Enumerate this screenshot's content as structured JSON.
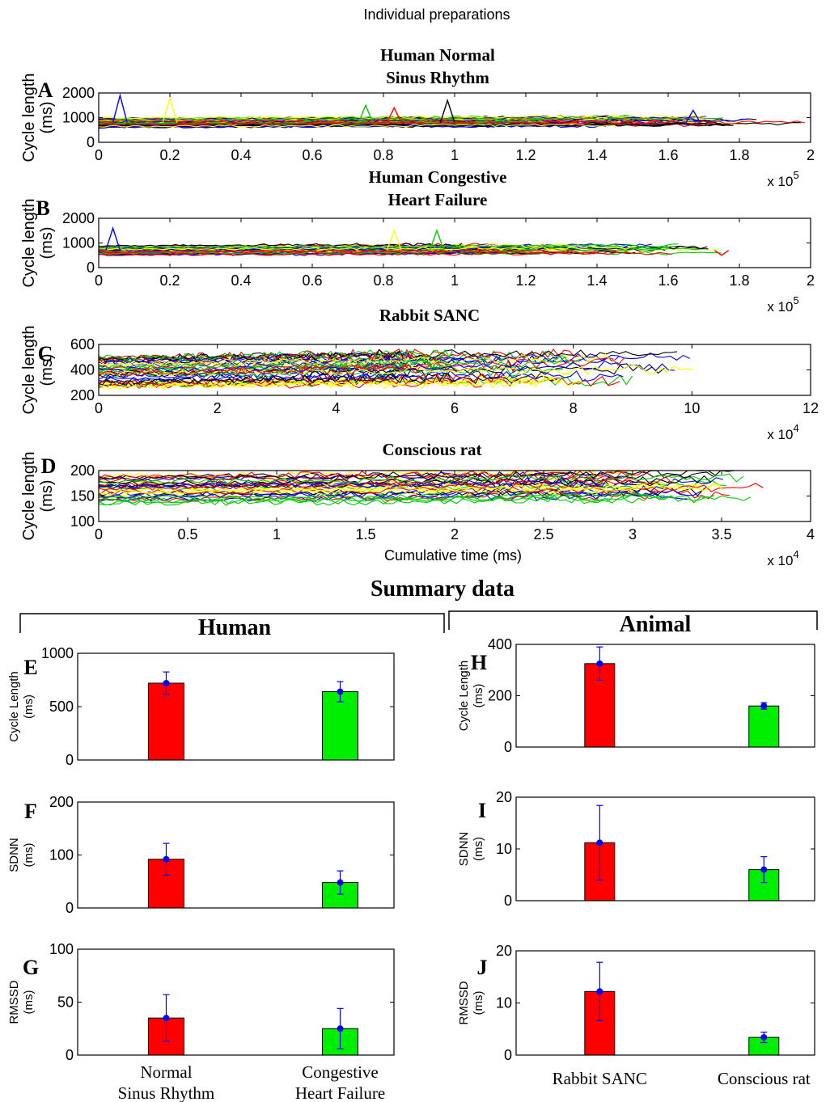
{
  "figure": {
    "top_title": "Individual preparations",
    "summary_title": "Summary data",
    "group_human": "Human",
    "group_animal": "Animal"
  },
  "colors": {
    "trace_palette": [
      "#000000",
      "#0000ff",
      "#ffff00",
      "#00cc00",
      "#ff0000"
    ],
    "bar_red": "#ff0000",
    "bar_green": "#00ee00",
    "error_bar": "#0000ff"
  },
  "chart_data": [
    {
      "id": "A",
      "type": "line",
      "title": [
        "Human Normal",
        "Sinus Rhythm"
      ],
      "ylabel": [
        "Cycle length",
        "(ms)"
      ],
      "xlabel": "",
      "x_multiplier": "x 10",
      "x_exponent": "5",
      "xlim": [
        0,
        2
      ],
      "ylim": [
        0,
        2000
      ],
      "xticks": [
        "0",
        "0.2",
        "0.4",
        "0.6",
        "0.8",
        "1",
        "1.2",
        "1.4",
        "1.6",
        "1.8",
        "2"
      ],
      "yticks": [
        "0",
        "1000",
        "2000"
      ],
      "grid": false,
      "approx_series": {
        "count": 40,
        "band_low": 600,
        "band_high": 1000,
        "x_end_range": [
          1.2,
          2.0
        ],
        "spikes": [
          [
            0.06,
            1900
          ],
          [
            0.2,
            1800
          ],
          [
            0.75,
            1500
          ],
          [
            0.83,
            1400
          ],
          [
            0.98,
            1700
          ],
          [
            1.67,
            1300
          ]
        ]
      }
    },
    {
      "id": "B",
      "type": "line",
      "title": [
        "Human Congestive",
        "Heart Failure"
      ],
      "ylabel": [
        "Cycle length",
        "(ms)"
      ],
      "xlabel": "",
      "x_multiplier": "x 10",
      "x_exponent": "5",
      "xlim": [
        0,
        2
      ],
      "ylim": [
        0,
        2000
      ],
      "xticks": [
        "0",
        "0.2",
        "0.4",
        "0.6",
        "0.8",
        "1",
        "1.2",
        "1.4",
        "1.6",
        "1.8",
        "2"
      ],
      "yticks": [
        "0",
        "1000",
        "2000"
      ],
      "grid": false,
      "approx_series": {
        "count": 30,
        "band_low": 500,
        "band_high": 900,
        "x_end_range": [
          1.0,
          1.85
        ],
        "spikes": [
          [
            0.04,
            1600
          ],
          [
            0.83,
            1500
          ],
          [
            0.95,
            1500
          ],
          [
            1.75,
            500
          ]
        ]
      }
    },
    {
      "id": "C",
      "type": "line",
      "title": [
        "Rabbit SANC"
      ],
      "ylabel": [
        "Cycle length",
        "(ms)"
      ],
      "xlabel": "",
      "x_multiplier": "x 10",
      "x_exponent": "4",
      "xlim": [
        0,
        12
      ],
      "ylim": [
        200,
        600
      ],
      "xticks": [
        "0",
        "2",
        "4",
        "6",
        "8",
        "10",
        "12"
      ],
      "yticks": [
        "200",
        "400",
        "600"
      ],
      "grid": false,
      "approx_series": {
        "count": 40,
        "band_low": 260,
        "band_high": 500,
        "x_end_range": [
          5,
          10.1
        ],
        "spikes": []
      }
    },
    {
      "id": "D",
      "type": "line",
      "title": [
        "Conscious rat"
      ],
      "ylabel": [
        "Cycle length",
        "(ms)"
      ],
      "xlabel": "Cumulative time (ms)",
      "x_multiplier": "x 10",
      "x_exponent": "4",
      "xlim": [
        0,
        4
      ],
      "ylim": [
        100,
        200
      ],
      "xticks": [
        "0",
        "0.5",
        "1",
        "1.5",
        "2",
        "2.5",
        "3",
        "3.5",
        "4"
      ],
      "yticks": [
        "100",
        "150",
        "200"
      ],
      "grid": false,
      "approx_series": {
        "count": 30,
        "band_low": 135,
        "band_high": 190,
        "x_end_range": [
          2.7,
          3.75
        ],
        "spikes": []
      }
    },
    {
      "id": "E",
      "type": "bar",
      "ylabel": [
        "Cycle Length",
        "(ms)"
      ],
      "categories": [
        "Normal Sinus Rhythm",
        "Congestive Heart Failure"
      ],
      "values": [
        720,
        640
      ],
      "errors": [
        105,
        95
      ],
      "colors": [
        "#ff0000",
        "#00ee00"
      ],
      "ylim": [
        0,
        1000
      ],
      "yticks": [
        "0",
        "500",
        "1000"
      ]
    },
    {
      "id": "F",
      "type": "bar",
      "ylabel": [
        "SDNN",
        "(ms)"
      ],
      "categories": [
        "Normal Sinus Rhythm",
        "Congestive Heart Failure"
      ],
      "values": [
        92,
        48
      ],
      "errors": [
        30,
        22
      ],
      "colors": [
        "#ff0000",
        "#00ee00"
      ],
      "ylim": [
        0,
        200
      ],
      "yticks": [
        "0",
        "100",
        "200"
      ]
    },
    {
      "id": "G",
      "type": "bar",
      "ylabel": [
        "RMSSD",
        "(ms)"
      ],
      "categories": [
        "Normal Sinus Rhythm",
        "Congestive Heart Failure"
      ],
      "category_labels": [
        [
          "Normal",
          "Sinus Rhythm"
        ],
        [
          "Congestive",
          "Heart Failure"
        ]
      ],
      "values": [
        35,
        25
      ],
      "errors": [
        22,
        19
      ],
      "colors": [
        "#ff0000",
        "#00ee00"
      ],
      "ylim": [
        0,
        100
      ],
      "yticks": [
        "0",
        "50",
        "100"
      ]
    },
    {
      "id": "H",
      "type": "bar",
      "ylabel": [
        "Cycle Length",
        "(ms)"
      ],
      "categories": [
        "Rabbit SANC",
        "Conscious rat"
      ],
      "values": [
        325,
        160
      ],
      "errors": [
        65,
        13
      ],
      "colors": [
        "#ff0000",
        "#00ee00"
      ],
      "ylim": [
        0,
        400
      ],
      "yticks": [
        "0",
        "200",
        "400"
      ]
    },
    {
      "id": "I",
      "type": "bar",
      "ylabel": [
        "SDNN",
        "(ms)"
      ],
      "categories": [
        "Rabbit SANC",
        "Conscious rat"
      ],
      "values": [
        11.2,
        6.0
      ],
      "errors": [
        7.2,
        2.5
      ],
      "colors": [
        "#ff0000",
        "#00ee00"
      ],
      "ylim": [
        0,
        20
      ],
      "yticks": [
        "0",
        "10",
        "20"
      ]
    },
    {
      "id": "J",
      "type": "bar",
      "ylabel": [
        "RMSSD",
        "(ms)"
      ],
      "categories": [
        "Rabbit SANC",
        "Conscious rat"
      ],
      "category_labels": [
        [
          "Rabbit SANC"
        ],
        [
          "Conscious rat"
        ]
      ],
      "values": [
        12.2,
        3.4
      ],
      "errors": [
        5.6,
        1.0
      ],
      "colors": [
        "#ff0000",
        "#00ee00"
      ],
      "ylim": [
        0,
        20
      ],
      "yticks": [
        "0",
        "10",
        "20"
      ]
    }
  ]
}
